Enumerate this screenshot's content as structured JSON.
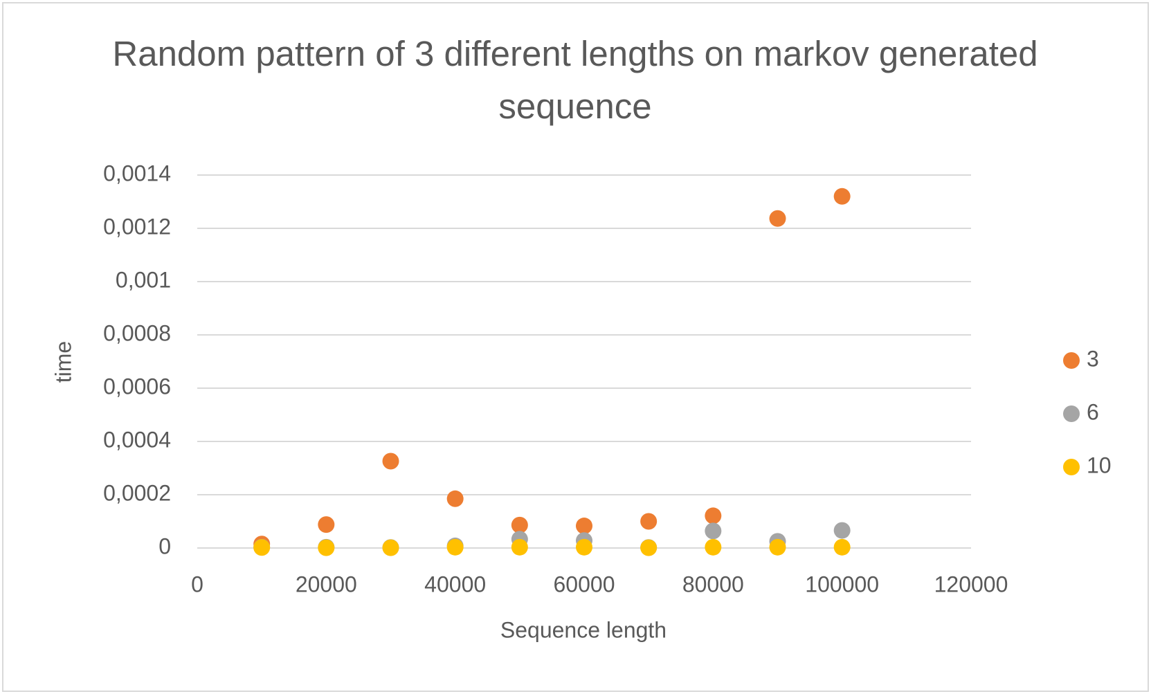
{
  "chart_data": {
    "type": "scatter",
    "title": "Random pattern of 3 different lengths on markov generated sequence",
    "x_label": "Sequence length",
    "y_label": "time",
    "x": [
      10000,
      20000,
      30000,
      40000,
      50000,
      60000,
      70000,
      80000,
      90000,
      100000
    ],
    "series": [
      {
        "name": "3",
        "color": "#ED7D31",
        "values": [
          1.5e-05,
          8.8e-05,
          0.000326,
          0.000185,
          8.6e-05,
          8.3e-05,
          0.0001,
          0.000121,
          0.001237,
          0.00132
        ]
      },
      {
        "name": "6",
        "color": "#A5A5A5",
        "values": [
          3e-06,
          3e-06,
          2e-06,
          8e-06,
          3.3e-05,
          2.8e-05,
          2e-06,
          6.4e-05,
          2.5e-05,
          6.6e-05
        ]
      },
      {
        "name": "10",
        "color": "#FFC000",
        "values": [
          2e-06,
          1e-06,
          1e-06,
          3e-06,
          3e-06,
          3e-06,
          1e-06,
          3e-06,
          3e-06,
          3e-06
        ]
      }
    ],
    "xlim": [
      0,
      120000
    ],
    "xticks": [
      0,
      20000,
      40000,
      60000,
      80000,
      100000,
      120000
    ],
    "ylim": [
      0,
      0.0014
    ],
    "yticks": [
      0,
      {
        "value": 0.0002,
        "label": "0,0002"
      },
      {
        "value": 0.0004,
        "label": "0,0004"
      },
      {
        "value": 0.0006,
        "label": "0,0006"
      },
      {
        "value": 0.0008,
        "label": "0,0008"
      },
      {
        "value": 0.001,
        "label": "0,001"
      },
      {
        "value": 0.0012,
        "label": "0,0012"
      },
      {
        "value": 0.0014,
        "label": "0,0014"
      }
    ],
    "grid": true,
    "legend": "right"
  }
}
